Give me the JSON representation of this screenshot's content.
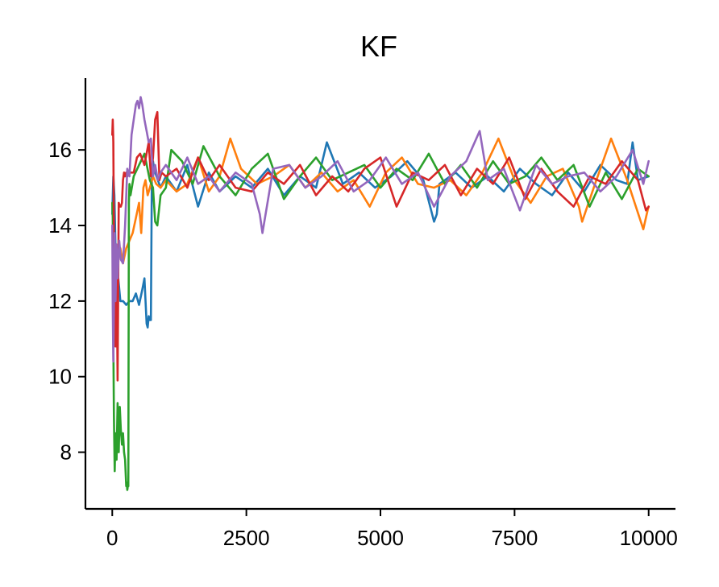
{
  "chart_data": {
    "type": "line",
    "title": "KF",
    "xlabel": "",
    "ylabel": "",
    "xlim": [
      -500,
      10500
    ],
    "ylim": [
      6.5,
      17.9
    ],
    "xticks": [
      0,
      2500,
      5000,
      7500,
      10000
    ],
    "xtick_labels": [
      "0",
      "2500",
      "5000",
      "7500",
      "10000"
    ],
    "yticks": [
      8,
      10,
      12,
      14,
      16
    ],
    "ytick_labels": [
      "8",
      "10",
      "12",
      "14",
      "16"
    ],
    "grid": false,
    "legend": "none",
    "series": [
      {
        "color": "#1f77b4",
        "x": [
          0,
          20,
          40,
          60,
          100,
          150,
          200,
          260,
          320,
          380,
          440,
          500,
          560,
          600,
          640,
          660,
          680,
          700,
          720,
          740,
          760,
          780,
          800,
          850,
          900,
          1000,
          1200,
          1400,
          1600,
          1800,
          2000,
          2300,
          2600,
          2900,
          3200,
          3500,
          3800,
          4000,
          4300,
          4600,
          4900,
          5200,
          5500,
          5800,
          6000,
          6050,
          6100,
          6400,
          6700,
          7000,
          7300,
          7600,
          7900,
          8200,
          8500,
          8800,
          9100,
          9400,
          9600,
          9700,
          9800,
          10000
        ],
        "y": [
          14.3,
          15.3,
          14.8,
          13.4,
          12.8,
          12.0,
          12.0,
          11.9,
          12.0,
          12.0,
          12.2,
          11.9,
          12.3,
          12.6,
          11.4,
          11.3,
          11.6,
          11.5,
          11.5,
          15.6,
          15.7,
          15.5,
          15.4,
          15.2,
          15.0,
          15.3,
          14.9,
          15.6,
          14.5,
          15.4,
          14.9,
          15.3,
          15.0,
          15.5,
          14.8,
          15.3,
          15.0,
          16.2,
          15.1,
          15.4,
          15.0,
          15.3,
          15.7,
          15.2,
          14.1,
          14.3,
          15.1,
          15.4,
          15.0,
          15.3,
          14.9,
          15.5,
          15.1,
          14.8,
          15.4,
          14.9,
          15.6,
          15.2,
          15.1,
          16.2,
          15.2,
          15.3
        ]
      },
      {
        "color": "#ff7f0e",
        "x": [
          0,
          30,
          60,
          100,
          150,
          200,
          260,
          320,
          380,
          440,
          500,
          540,
          580,
          620,
          660,
          700,
          760,
          820,
          900,
          1000,
          1200,
          1400,
          1600,
          1800,
          2000,
          2200,
          2400,
          2700,
          3000,
          3300,
          3600,
          3900,
          4200,
          4500,
          4800,
          5100,
          5400,
          5700,
          6000,
          6300,
          6600,
          6900,
          7200,
          7500,
          7800,
          8100,
          8400,
          8700,
          8760,
          9000,
          9300,
          9600,
          9900,
          9980,
          10000
        ],
        "y": [
          14.0,
          13.5,
          13.3,
          13.2,
          13.4,
          13.0,
          13.4,
          13.6,
          13.8,
          14.2,
          14.6,
          13.8,
          15.0,
          15.2,
          14.8,
          15.0,
          15.3,
          15.1,
          15.0,
          15.2,
          14.9,
          15.1,
          15.8,
          14.9,
          15.3,
          16.3,
          15.5,
          15.1,
          15.3,
          15.6,
          15.0,
          15.4,
          14.9,
          15.2,
          14.5,
          15.4,
          15.8,
          15.1,
          15.0,
          15.2,
          14.8,
          15.4,
          16.3,
          15.2,
          14.6,
          15.3,
          15.5,
          14.5,
          14.1,
          15.1,
          16.3,
          15.2,
          13.9,
          14.4,
          14.5
        ]
      },
      {
        "color": "#2ca02c",
        "x": [
          0,
          10,
          20,
          30,
          45,
          60,
          80,
          100,
          120,
          140,
          160,
          180,
          200,
          220,
          240,
          260,
          270,
          280,
          290,
          300,
          310,
          320,
          340,
          400,
          500,
          600,
          700,
          760,
          800,
          840,
          900,
          1000,
          1100,
          1300,
          1500,
          1700,
          2000,
          2300,
          2600,
          2900,
          3200,
          3500,
          3800,
          4100,
          4400,
          4700,
          5000,
          5300,
          5600,
          5900,
          6200,
          6500,
          6800,
          7100,
          7400,
          7700,
          8000,
          8300,
          8600,
          8900,
          9200,
          9500,
          9800,
          10000
        ],
        "y": [
          14.6,
          14.2,
          11.0,
          9.0,
          7.5,
          8.5,
          7.8,
          9.3,
          8.0,
          9.2,
          8.6,
          8.2,
          8.5,
          8.0,
          7.8,
          7.1,
          7.2,
          7.0,
          7.1,
          7.1,
          14.6,
          15.1,
          14.8,
          15.3,
          15.6,
          15.9,
          15.2,
          15.0,
          14.1,
          14.0,
          14.8,
          15.0,
          16.0,
          15.7,
          15.1,
          16.1,
          15.3,
          14.8,
          15.5,
          15.9,
          14.7,
          15.3,
          15.8,
          15.2,
          15.4,
          15.6,
          15.0,
          15.5,
          15.2,
          15.9,
          15.1,
          15.6,
          15.0,
          15.7,
          15.1,
          15.3,
          15.8,
          15.2,
          15.6,
          14.5,
          15.4,
          14.7,
          15.5,
          15.3
        ]
      },
      {
        "color": "#d62728",
        "x": [
          0,
          10,
          20,
          30,
          40,
          50,
          60,
          80,
          100,
          120,
          140,
          160,
          180,
          200,
          220,
          240,
          260,
          280,
          300,
          340,
          400,
          460,
          520,
          600,
          680,
          720,
          760,
          800,
          840,
          880,
          920,
          1000,
          1200,
          1400,
          1600,
          1800,
          2000,
          2300,
          2600,
          2900,
          3200,
          3500,
          3800,
          4100,
          4400,
          4700,
          5000,
          5300,
          5600,
          5900,
          6200,
          6500,
          6800,
          7100,
          7400,
          7700,
          8000,
          8300,
          8600,
          8900,
          9200,
          9500,
          9800,
          9950,
          10000
        ],
        "y": [
          16.4,
          16.8,
          16.2,
          13.8,
          11.5,
          12.6,
          10.8,
          13.2,
          9.9,
          14.6,
          14.5,
          14.5,
          14.6,
          15.2,
          15.4,
          15.3,
          15.4,
          15.3,
          15.4,
          15.4,
          15.4,
          15.8,
          15.9,
          15.6,
          16.2,
          15.3,
          15.8,
          16.8,
          17.0,
          15.2,
          15.4,
          15.3,
          15.5,
          15.0,
          15.8,
          15.2,
          15.6,
          15.0,
          14.9,
          15.4,
          15.1,
          15.6,
          14.8,
          15.3,
          14.9,
          15.5,
          15.8,
          14.5,
          15.4,
          15.2,
          15.6,
          14.8,
          15.5,
          15.1,
          15.8,
          14.7,
          15.5,
          14.9,
          14.5,
          15.3,
          15.1,
          15.7,
          15.2,
          14.4,
          14.5
        ]
      },
      {
        "color": "#9467bd",
        "x": [
          0,
          10,
          20,
          30,
          45,
          60,
          80,
          100,
          130,
          160,
          200,
          240,
          280,
          320,
          360,
          400,
          440,
          470,
          500,
          530,
          560,
          600,
          640,
          680,
          720,
          760,
          800,
          850,
          900,
          1000,
          1200,
          1400,
          1600,
          1800,
          2000,
          2300,
          2600,
          2750,
          2800,
          3000,
          3300,
          3600,
          3900,
          4200,
          4500,
          4800,
          5100,
          5400,
          5700,
          6000,
          6300,
          6600,
          6850,
          7000,
          7300,
          7600,
          7900,
          8200,
          8500,
          8800,
          9100,
          9400,
          9700,
          9900,
          10000
        ],
        "y": [
          14.0,
          11.8,
          10.4,
          11.8,
          13.8,
          12.0,
          13.5,
          12.6,
          13.6,
          13.1,
          13.0,
          14.0,
          15.5,
          15.3,
          16.4,
          16.8,
          17.2,
          17.3,
          17.1,
          17.4,
          17.2,
          16.8,
          16.5,
          16.2,
          16.3,
          15.3,
          15.6,
          15.2,
          15.4,
          15.6,
          15.2,
          15.8,
          15.1,
          15.3,
          14.9,
          15.4,
          15.1,
          14.3,
          13.8,
          15.5,
          15.6,
          15.0,
          15.3,
          15.7,
          14.9,
          15.2,
          15.8,
          15.1,
          15.4,
          14.5,
          15.3,
          15.7,
          16.5,
          15.2,
          15.5,
          14.4,
          15.6,
          15.1,
          15.3,
          15.4,
          14.9,
          15.3,
          16.0,
          15.1,
          15.7
        ]
      }
    ]
  }
}
